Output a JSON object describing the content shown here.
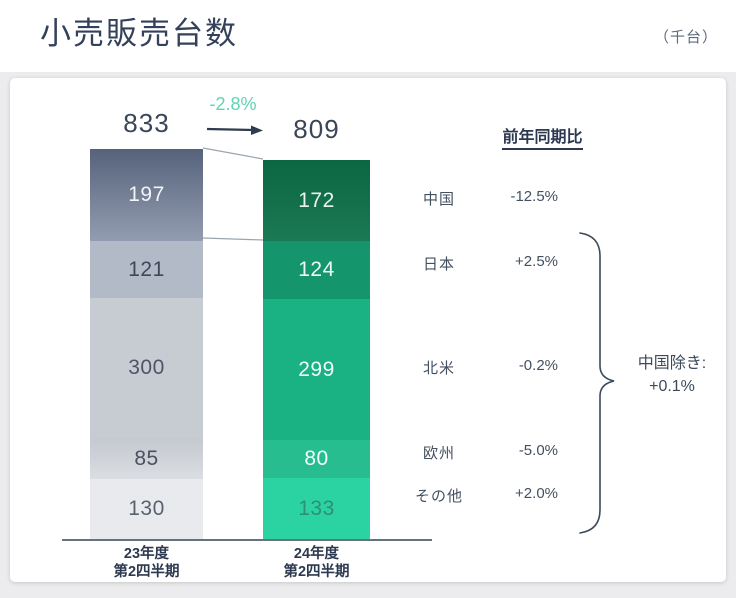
{
  "header": {
    "title": "小売販売台数",
    "unit": "（千台）"
  },
  "chart_data": {
    "type": "bar",
    "subtype": "stacked-column-comparison",
    "title": "小売販売台数",
    "unit": "千台",
    "grid": false,
    "categories": [
      {
        "line1": "23年度",
        "line2": "第2四半期"
      },
      {
        "line1": "24年度",
        "line2": "第2四半期"
      }
    ],
    "segments": [
      "中国",
      "日本",
      "北米",
      "欧州",
      "その他"
    ],
    "series": [
      {
        "name": "23年度 第2四半期",
        "total": 833,
        "values": [
          197,
          121,
          300,
          85,
          130
        ]
      },
      {
        "name": "24年度 第2四半期",
        "total": 809,
        "values": [
          172,
          124,
          299,
          80,
          133
        ]
      }
    ],
    "change_label": "-2.8%",
    "yoy": {
      "header": "前年同期比",
      "rows": [
        {
          "region": "中国",
          "value": "-12.5%"
        },
        {
          "region": "日本",
          "value": "+2.5%"
        },
        {
          "region": "北米",
          "value": "-0.2%"
        },
        {
          "region": "欧州",
          "value": "-5.0%"
        },
        {
          "region": "その他",
          "value": "+2.0%"
        }
      ],
      "excluding_china": {
        "label": "中国除き:",
        "value": "+0.1%"
      }
    }
  },
  "colors": {
    "title_text": "#33415a",
    "change_accent": "#5fd4b2",
    "arrow": "#2f3b4e",
    "connector": "#9aa5af",
    "baseline": "#67727f",
    "bars": [
      {
        "fill": [
          "#74819a",
          "#b3bac7",
          "#c7cbd2",
          "#ced2d8",
          "#e8eaee"
        ],
        "text": [
          "#f2f4f8",
          "#3d4859",
          "#4d5668",
          "#49525f",
          "#5a626e"
        ]
      },
      {
        "fill": [
          "#0d7049",
          "#15956b",
          "#1ab283",
          "#27bd8f",
          "#2bd3a3"
        ],
        "text": [
          "#e8f5ee",
          "#eefaf4",
          "#f0fcf7",
          "#f2fdf9",
          "#2f8e74"
        ]
      }
    ]
  }
}
